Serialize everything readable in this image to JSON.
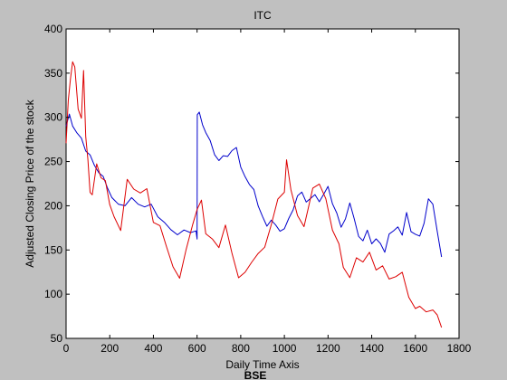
{
  "figure": {
    "background": "#c0c0c0",
    "caption": "BSE"
  },
  "chart_data": {
    "type": "line",
    "title": "ITC",
    "xlabel": "Daily Time Axis",
    "ylabel": "Adjusted Closing Price of the stock",
    "xlim": [
      0,
      1800
    ],
    "ylim": [
      50,
      400
    ],
    "xticks": [
      0,
      200,
      400,
      600,
      800,
      1000,
      1200,
      1400,
      1600,
      1800
    ],
    "yticks": [
      50,
      100,
      150,
      200,
      250,
      300,
      350,
      400
    ],
    "grid": false,
    "legend": "none",
    "series": [
      {
        "color": "#0000cc",
        "x": [
          0,
          15,
          30,
          50,
          70,
          90,
          110,
          130,
          150,
          170,
          190,
          210,
          240,
          270,
          300,
          330,
          360,
          390,
          420,
          450,
          480,
          510,
          540,
          570,
          595,
          600,
          601,
          610,
          625,
          640,
          660,
          680,
          700,
          720,
          740,
          760,
          780,
          800,
          820,
          840,
          860,
          880,
          900,
          920,
          940,
          960,
          980,
          1000,
          1020,
          1040,
          1060,
          1080,
          1100,
          1120,
          1140,
          1160,
          1180,
          1200,
          1220,
          1240,
          1260,
          1280,
          1300,
          1320,
          1340,
          1360,
          1380,
          1400,
          1420,
          1440,
          1460,
          1480,
          1500,
          1520,
          1540,
          1560,
          1580,
          1600,
          1620,
          1640,
          1660,
          1680,
          1700,
          1720
        ],
        "values": [
          290,
          300,
          290,
          280,
          275,
          260,
          255,
          245,
          240,
          235,
          220,
          210,
          205,
          200,
          210,
          200,
          195,
          200,
          185,
          180,
          170,
          165,
          170,
          172,
          175,
          165,
          305,
          310,
          295,
          285,
          270,
          255,
          250,
          255,
          255,
          260,
          262,
          240,
          235,
          225,
          220,
          200,
          190,
          180,
          185,
          175,
          170,
          172,
          185,
          195,
          210,
          215,
          205,
          210,
          215,
          205,
          215,
          225,
          205,
          195,
          175,
          185,
          200,
          185,
          165,
          160,
          170,
          160,
          165,
          160,
          150,
          170,
          175,
          180,
          170,
          190,
          170,
          165,
          165,
          180,
          205,
          200,
          175,
          145
        ]
      },
      {
        "color": "#dd0000",
        "x": [
          0,
          10,
          20,
          30,
          40,
          55,
          70,
          80,
          90,
          100,
          110,
          120,
          140,
          160,
          180,
          200,
          220,
          250,
          280,
          310,
          340,
          370,
          400,
          430,
          460,
          490,
          520,
          550,
          580,
          600,
          620,
          640,
          670,
          700,
          730,
          760,
          790,
          820,
          850,
          880,
          910,
          940,
          970,
          1000,
          1010,
          1030,
          1060,
          1090,
          1110,
          1130,
          1160,
          1190,
          1220,
          1250,
          1270,
          1300,
          1330,
          1360,
          1390,
          1420,
          1450,
          1480,
          1510,
          1540,
          1570,
          1600,
          1620,
          1650,
          1680,
          1700,
          1720
        ],
        "values": [
          270,
          320,
          345,
          365,
          360,
          310,
          300,
          355,
          280,
          250,
          215,
          210,
          245,
          230,
          225,
          200,
          190,
          175,
          230,
          220,
          215,
          220,
          185,
          175,
          150,
          130,
          115,
          150,
          175,
          195,
          205,
          170,
          165,
          155,
          180,
          150,
          120,
          125,
          135,
          145,
          150,
          175,
          205,
          215,
          250,
          215,
          190,
          180,
          200,
          220,
          225,
          210,
          175,
          155,
          130,
          115,
          140,
          135,
          145,
          125,
          130,
          120,
          120,
          125,
          100,
          85,
          90,
          80,
          80,
          75,
          60
        ]
      }
    ]
  }
}
